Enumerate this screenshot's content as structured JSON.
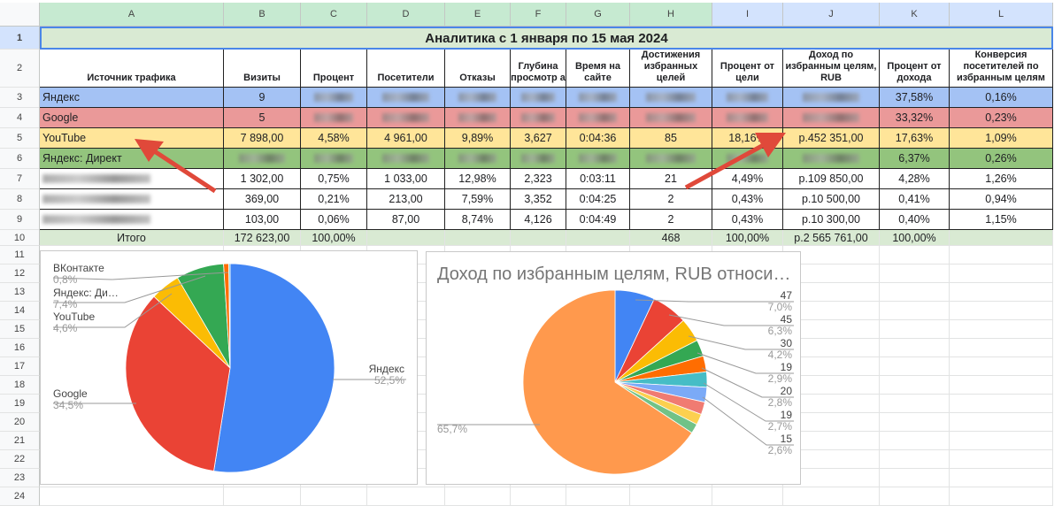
{
  "columns": [
    "A",
    "B",
    "C",
    "D",
    "E",
    "F",
    "G",
    "H",
    "I",
    "J",
    "K",
    "L"
  ],
  "row_numbers": [
    "1",
    "2",
    "3",
    "4",
    "5",
    "6",
    "7",
    "8",
    "9",
    "10",
    "11",
    "12",
    "13",
    "14",
    "15",
    "16",
    "17",
    "18",
    "19",
    "20",
    "21",
    "22",
    "23",
    "24"
  ],
  "title": "Аналитика с 1 января по 15 мая 2024",
  "headers": [
    "Источник трафика",
    "Визиты",
    "Процент",
    "Посетители",
    "Отказы",
    "Глубина просмотр а",
    "Время на сайте",
    "Достижения избранных целей",
    "Процент от цели",
    "Доход по избранным целям, RUB",
    "Процент от дохода",
    "Конверсия посетителей по избранным целям"
  ],
  "rows": [
    {
      "color": "#a4c2f4",
      "cells": [
        "Яндекс",
        "9",
        null,
        null,
        null,
        null,
        null,
        null,
        null,
        null,
        "37,58%",
        "0,16%"
      ]
    },
    {
      "color": "#ea9999",
      "cells": [
        "Google",
        "5",
        null,
        null,
        null,
        null,
        null,
        null,
        null,
        null,
        "33,32%",
        "0,23%"
      ]
    },
    {
      "color": "#ffe599",
      "cells": [
        "YouTube",
        "7 898,00",
        "4,58%",
        "4 961,00",
        "9,89%",
        "3,627",
        "0:04:36",
        "85",
        "18,16%",
        "р.452 351,00",
        "17,63%",
        "1,09%"
      ]
    },
    {
      "color": "#93c47d",
      "cells": [
        "Яндекс: Директ",
        null,
        null,
        null,
        null,
        null,
        null,
        null,
        null,
        null,
        "6,37%",
        "0,26%"
      ]
    },
    {
      "color": "#ffffff",
      "cells": [
        null,
        "1 302,00",
        "0,75%",
        "1 033,00",
        "12,98%",
        "2,323",
        "0:03:11",
        "21",
        "4,49%",
        "р.109 850,00",
        "4,28%",
        "1,26%"
      ]
    },
    {
      "color": "#ffffff",
      "cells": [
        null,
        "369,00",
        "0,21%",
        "213,00",
        "7,59%",
        "3,352",
        "0:04:25",
        "2",
        "0,43%",
        "р.10 500,00",
        "0,41%",
        "0,94%"
      ]
    },
    {
      "color": "#ffffff",
      "cells": [
        null,
        "103,00",
        "0,06%",
        "87,00",
        "8,74%",
        "4,126",
        "0:04:49",
        "2",
        "0,43%",
        "р.10 300,00",
        "0,40%",
        "1,15%"
      ]
    }
  ],
  "totals": [
    "Итого",
    "172 623,00",
    "100,00%",
    "",
    "",
    "",
    "",
    "468",
    "100,00%",
    "р.2 565 761,00",
    "100,00%",
    ""
  ],
  "chart_data": [
    {
      "type": "pie",
      "title": "",
      "slices": [
        {
          "label": "Яндекс",
          "value": 52.5,
          "pct_label": "52,5%",
          "color": "#4285f4"
        },
        {
          "label": "Google",
          "value": 34.5,
          "pct_label": "34,5%",
          "color": "#ea4335"
        },
        {
          "label": "YouTube",
          "value": 4.6,
          "pct_label": "4,6%",
          "color": "#fbbc04"
        },
        {
          "label": "Яндекс: Ди…",
          "value": 7.4,
          "pct_label": "7,4%",
          "color": "#34a853"
        },
        {
          "label": "ВКонтакте",
          "value": 0.8,
          "pct_label": "0,8%",
          "color": "#ff6d01"
        },
        {
          "label": "",
          "value": 0.2,
          "pct_label": "",
          "color": "#46bdc6"
        }
      ]
    },
    {
      "type": "pie",
      "title": "Доход по избранным целям, RUB относи…",
      "slices": [
        {
          "label": "47",
          "value": 7.0,
          "pct_label": "7,0%",
          "color": "#4285f4"
        },
        {
          "label": "45",
          "value": 6.3,
          "pct_label": "6,3%",
          "color": "#ea4335"
        },
        {
          "label": "30",
          "value": 4.2,
          "pct_label": "4,2%",
          "color": "#fbbc04"
        },
        {
          "label": "19",
          "value": 2.9,
          "pct_label": "2,9%",
          "color": "#34a853"
        },
        {
          "label": "20",
          "value": 2.8,
          "pct_label": "2,8%",
          "color": "#ff6d01"
        },
        {
          "label": "19",
          "value": 2.7,
          "pct_label": "2,7%",
          "color": "#46bdc6"
        },
        {
          "label": "15",
          "value": 2.6,
          "pct_label": "2,6%",
          "color": "#7baaf7"
        },
        {
          "label": "",
          "value": 2.2,
          "pct_label": "",
          "color": "#f07b72"
        },
        {
          "label": "",
          "value": 1.9,
          "pct_label": "",
          "color": "#fcd04f"
        },
        {
          "label": "",
          "value": 1.7,
          "pct_label": "",
          "color": "#71c287"
        },
        {
          "label": "",
          "value": 65.7,
          "pct_label": "65,7%",
          "color": "#ff994d"
        }
      ]
    }
  ]
}
